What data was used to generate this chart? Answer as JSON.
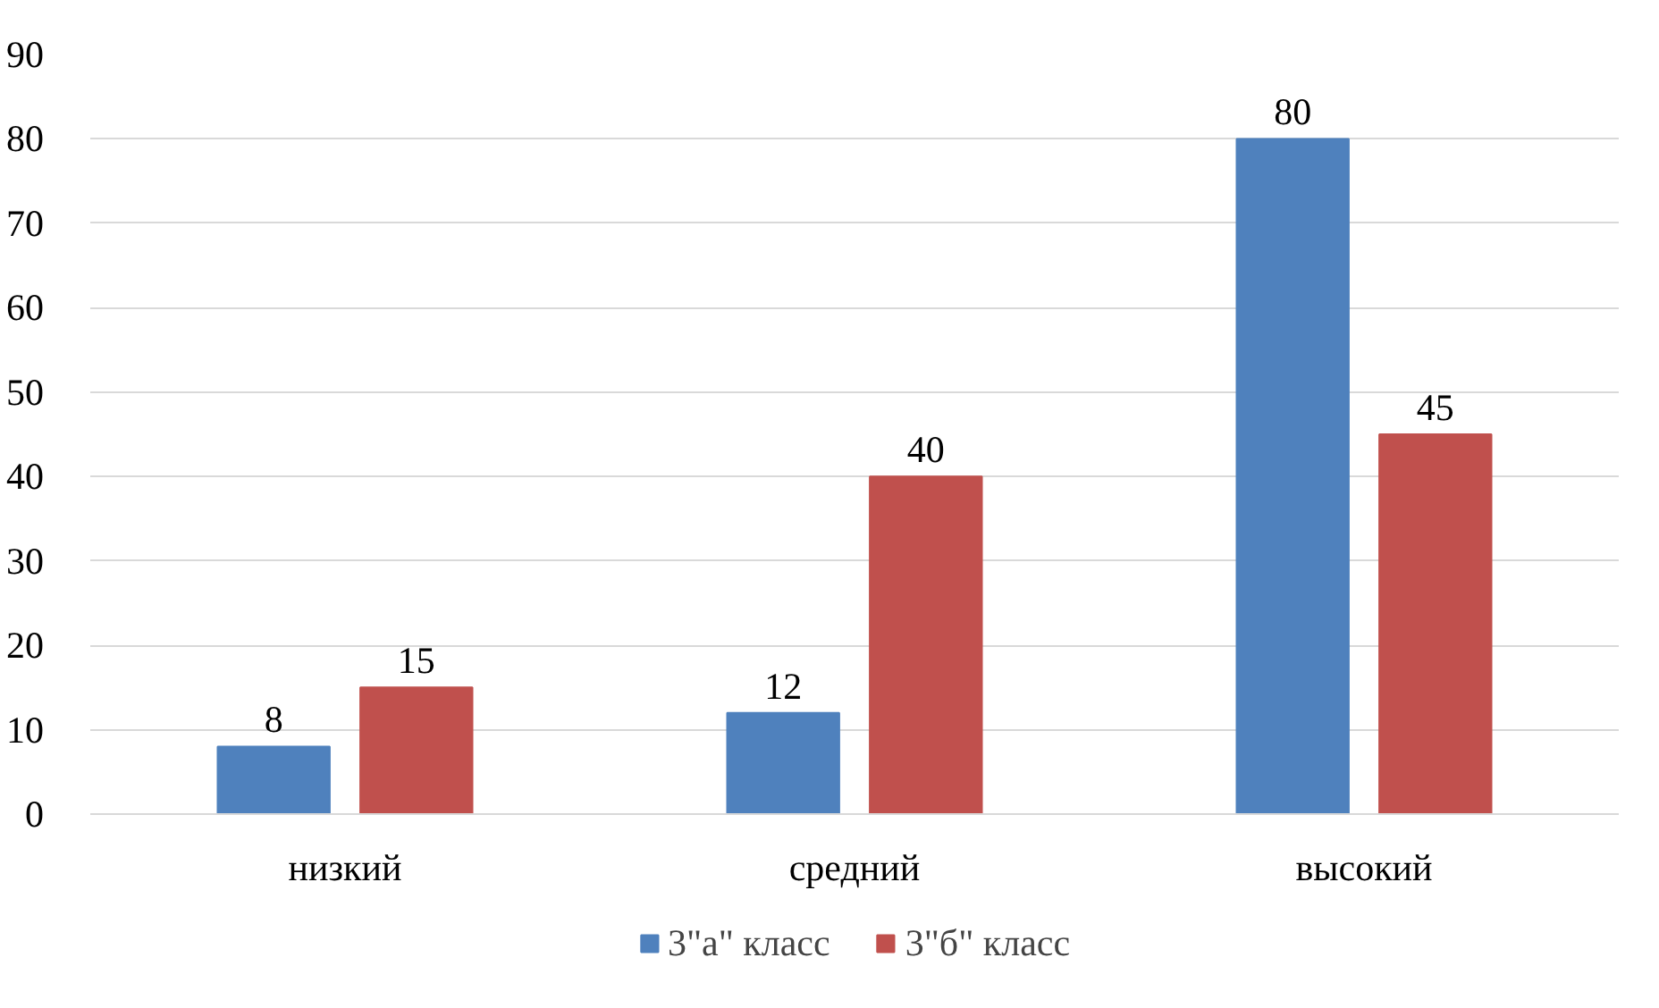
{
  "chart_data": {
    "type": "bar",
    "categories": [
      "низкий",
      "средний",
      "высокий"
    ],
    "series": [
      {
        "name": "3\"а\" класс",
        "color": "#4f81bd",
        "values": [
          8,
          12,
          80
        ]
      },
      {
        "name": "3\"б\" класс",
        "color": "#c0504d",
        "values": [
          15,
          40,
          45
        ]
      }
    ],
    "ylim": [
      0,
      90
    ],
    "yticks": [
      0,
      10,
      20,
      30,
      40,
      50,
      60,
      70,
      80,
      90
    ],
    "grid": "y",
    "legend": "bottom",
    "data_labels": true
  }
}
